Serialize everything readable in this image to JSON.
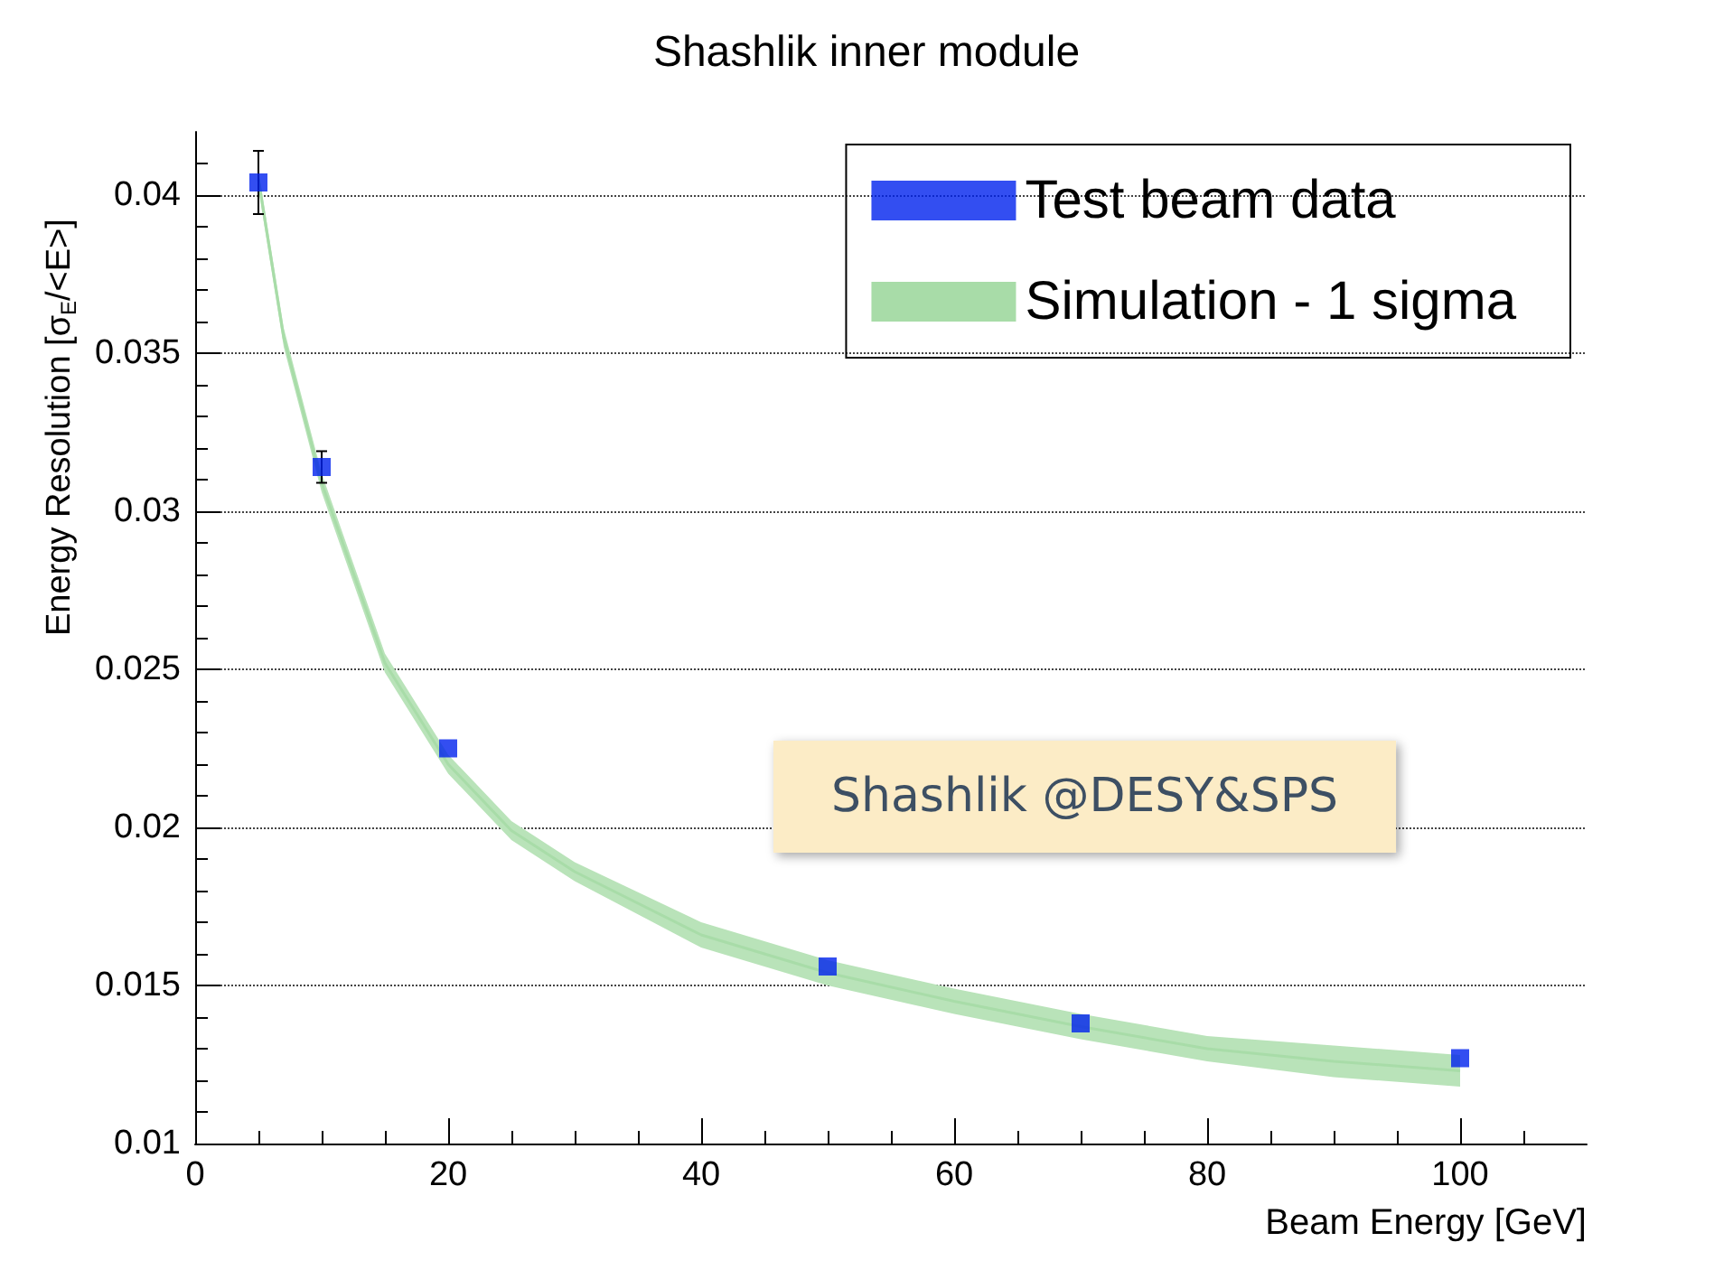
{
  "chart_data": {
    "type": "scatter",
    "title": "Shashlik inner module",
    "xlabel": "Beam Energy [GeV]",
    "ylabel": "Energy Resolution [σ$_{E}$/<E>]",
    "annotations": [
      "Shashlik @DESY&SPS"
    ],
    "series": [
      {
        "name": "Test beam data",
        "type": "scatter",
        "color": "#0022ee",
        "marker": "square",
        "x": [
          5,
          10,
          20,
          50,
          70,
          100
        ],
        "values": [
          0.0404,
          0.0314,
          0.0225,
          0.0156,
          0.0138,
          0.0127
        ],
        "errors": [
          0.001,
          0.0005,
          null,
          null,
          null,
          null
        ]
      },
      {
        "name": "Simulation - 1 sigma",
        "type": "line",
        "color": "#a8dca8",
        "marker": "none",
        "x": [
          5,
          7,
          10,
          15,
          20,
          25,
          30,
          40,
          50,
          60,
          70,
          80,
          90,
          100
        ],
        "values": [
          0.0405,
          0.0355,
          0.0309,
          0.0252,
          0.022,
          0.0199,
          0.0186,
          0.0166,
          0.0154,
          0.0145,
          0.0137,
          0.013,
          0.0126,
          0.0123
        ],
        "lower": [
          0.0402,
          0.0352,
          0.0306,
          0.0249,
          0.0217,
          0.0196,
          0.0183,
          0.0162,
          0.015,
          0.0141,
          0.0133,
          0.0126,
          0.0121,
          0.0118
        ],
        "upper": [
          0.0408,
          0.0358,
          0.0312,
          0.0255,
          0.0223,
          0.0202,
          0.0189,
          0.017,
          0.0158,
          0.0149,
          0.0141,
          0.0134,
          0.0131,
          0.0128
        ]
      }
    ],
    "xlim": [
      0,
      110
    ],
    "xticks": [
      0,
      20,
      40,
      60,
      80,
      100
    ],
    "ylim": [
      0.01,
      0.042
    ],
    "yticks": [
      0.01,
      0.015,
      0.02,
      0.025,
      0.03,
      0.035,
      0.04
    ],
    "grid": "y",
    "legend": "top right"
  }
}
